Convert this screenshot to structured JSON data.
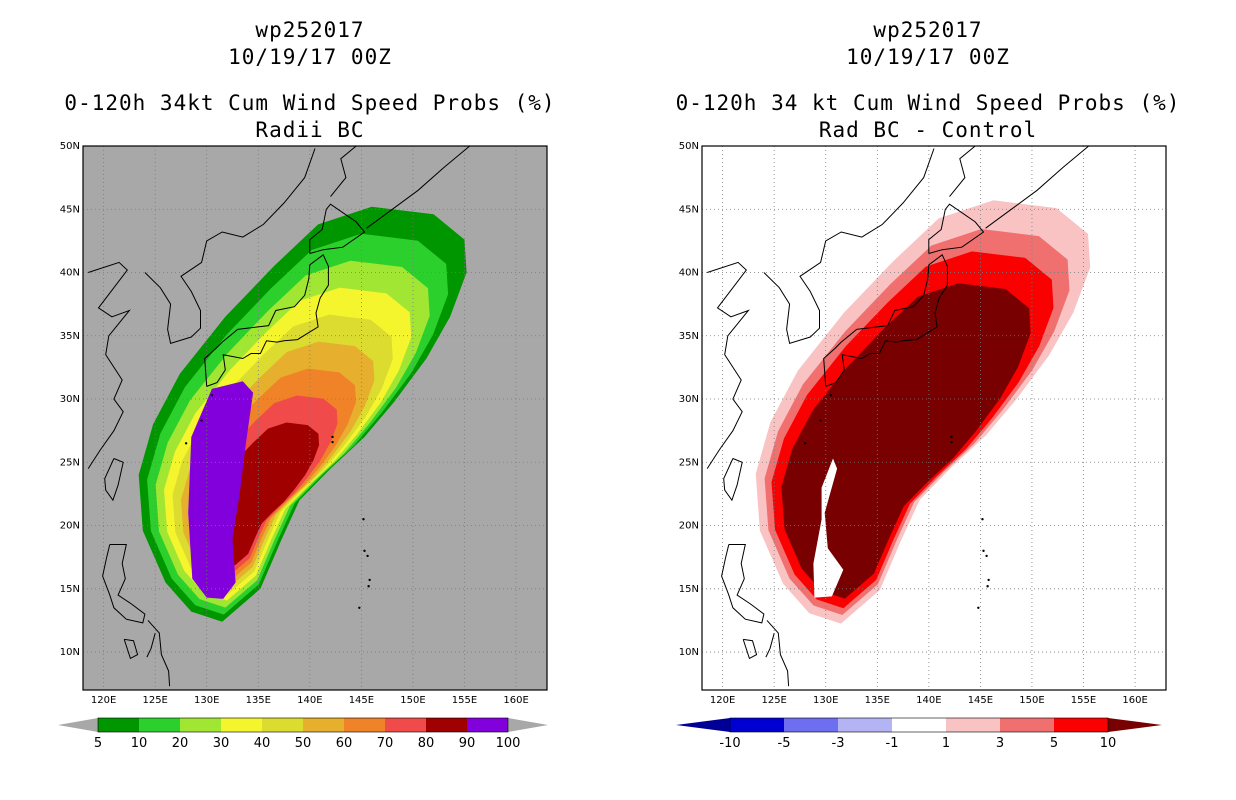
{
  "chart_data": [
    {
      "type": "heatmap",
      "panel": "left",
      "title_lines": [
        "wp252017",
        "10/19/17 00Z",
        "0-120h 34kt Cum Wind Speed Probs (%)",
        "Radii BC"
      ],
      "xlabel": "",
      "ylabel": "",
      "xlim": [
        118,
        163
      ],
      "ylim": [
        7,
        50
      ],
      "x_ticks": [
        "120E",
        "125E",
        "130E",
        "135E",
        "140E",
        "145E",
        "150E",
        "155E",
        "160E"
      ],
      "y_ticks": [
        "10N",
        "15N",
        "20N",
        "25N",
        "30N",
        "35N",
        "40N",
        "45N",
        "50N"
      ],
      "background": "#a8a8a8",
      "grid": true,
      "colorbar": {
        "levels": [
          "5",
          "10",
          "20",
          "30",
          "40",
          "50",
          "60",
          "70",
          "80",
          "90",
          "100"
        ],
        "colors": [
          "#009600",
          "#2cd02c",
          "#a0e632",
          "#f5f52d",
          "#dcdc30",
          "#e6af2d",
          "#f08228",
          "#f04a4a",
          "#a00000",
          "#8200dc"
        ],
        "end_color": "#a8a8a8"
      },
      "contours": [
        {
          "level": 5,
          "color": "#009600"
        },
        {
          "level": 10,
          "color": "#2cd02c"
        },
        {
          "level": 20,
          "color": "#a0e632"
        },
        {
          "level": 30,
          "color": "#f5f52d"
        },
        {
          "level": 40,
          "color": "#dcdc30"
        },
        {
          "level": 50,
          "color": "#e6af2d"
        },
        {
          "level": 60,
          "color": "#f08228"
        },
        {
          "level": 70,
          "color": "#f04a4a"
        },
        {
          "level": 80,
          "color": "#a00000"
        },
        {
          "level": 90,
          "color": "#8200dc"
        }
      ]
    },
    {
      "type": "heatmap",
      "panel": "right",
      "title_lines": [
        "wp252017",
        "10/19/17 00Z",
        "0-120h 34 kt Cum Wind Speed Probs (%)",
        "Rad BC - Control"
      ],
      "xlabel": "",
      "ylabel": "",
      "xlim": [
        118,
        163
      ],
      "ylim": [
        7,
        50
      ],
      "x_ticks": [
        "120E",
        "125E",
        "130E",
        "135E",
        "140E",
        "145E",
        "150E",
        "155E",
        "160E"
      ],
      "y_ticks": [
        "10N",
        "15N",
        "20N",
        "25N",
        "30N",
        "35N",
        "40N",
        "45N",
        "50N"
      ],
      "background": "#ffffff",
      "grid": true,
      "colorbar": {
        "levels": [
          "-10",
          "-5",
          "-3",
          "-1",
          "1",
          "3",
          "5",
          "10"
        ],
        "colors": [
          "#0000d2",
          "#6e6ef0",
          "#b4b4f5",
          "#ffffff",
          "#f9c3c3",
          "#f07070",
          "#fa0000"
        ],
        "end_color_low": "#000096",
        "end_color_high": "#780000"
      },
      "contours": [
        {
          "level": 1,
          "color": "#f9c3c3"
        },
        {
          "level": 3,
          "color": "#f07070"
        },
        {
          "level": 5,
          "color": "#fa0000"
        },
        {
          "level": 10,
          "color": "#780000"
        },
        {
          "level": "-1",
          "color": "#ffffff"
        }
      ]
    }
  ]
}
